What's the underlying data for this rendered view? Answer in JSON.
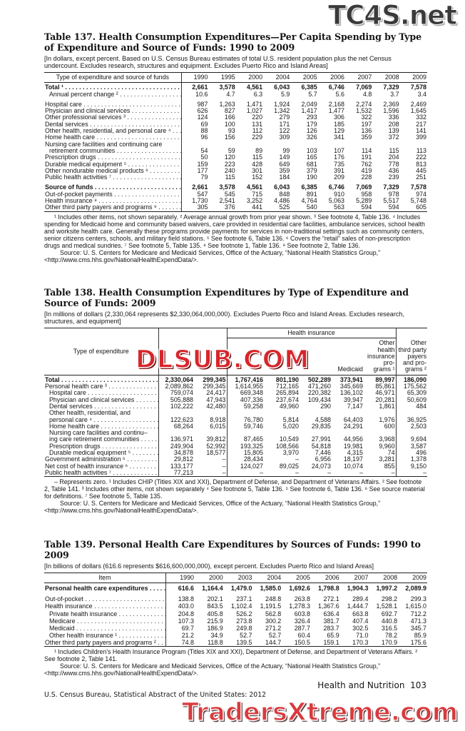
{
  "watermarks": {
    "top": "TC4S.net",
    "middle": "DLSUB.COM",
    "bottom": "TradersXtreme.com"
  },
  "t137": {
    "title": "Table 137. Health Consumption Expenditures—Per Capita Spending by Type of Expenditure and Source of Funds: 1990 to 2009",
    "subtitle": "[In dollars, except percent. Based on U.S. Census Bureau estimates of total U.S. resident population plus the net Census undercount. Excludes research, structures and equipment. Excludes Puerto Rico and Island Areas]",
    "header": {
      "label": "Type of expenditure and source of funds",
      "years": [
        "1990",
        "1995",
        "2000",
        "2004",
        "2005",
        "2006",
        "2007",
        "2008",
        "2009"
      ]
    },
    "rows": [
      {
        "label": [
          "Total ¹"
        ],
        "bold": true,
        "values": [
          "2,661",
          "3,578",
          "4,561",
          "6,043",
          "6,385",
          "6,746",
          "7,069",
          "7,329",
          "7,578"
        ]
      },
      {
        "label": [
          "Annual percent change ²"
        ],
        "indent": true,
        "values": [
          "10.6",
          "4.7",
          "6.3",
          "5.9",
          "5.7",
          "5.6",
          "4.8",
          "3.7",
          "3.4"
        ]
      },
      {
        "label": [
          "Hospital care"
        ],
        "gap": true,
        "values": [
          "987",
          "1,263",
          "1,471",
          "1,924",
          "2,049",
          "2,168",
          "2,274",
          "2,369",
          "2,469"
        ]
      },
      {
        "label": [
          "Physician and clinical services"
        ],
        "values": [
          "626",
          "827",
          "1,027",
          "1,342",
          "1,417",
          "1,477",
          "1,532",
          "1,596",
          "1,645"
        ]
      },
      {
        "label": [
          "Other professional services ³"
        ],
        "values": [
          "124",
          "166",
          "220",
          "279",
          "293",
          "306",
          "322",
          "336",
          "332"
        ]
      },
      {
        "label": [
          "Dental services"
        ],
        "values": [
          "69",
          "100",
          "131",
          "171",
          "179",
          "185",
          "197",
          "208",
          "217"
        ]
      },
      {
        "label": [
          "Other health, residential, and personal care ⁴"
        ],
        "values": [
          "88",
          "93",
          "112",
          "122",
          "126",
          "129",
          "136",
          "139",
          "141"
        ]
      },
      {
        "label": [
          "Home health care"
        ],
        "values": [
          "96",
          "156",
          "229",
          "309",
          "326",
          "341",
          "359",
          "372",
          "399"
        ]
      },
      {
        "label": [
          "Nursing care facilities and continuing care",
          "retirement communities"
        ],
        "values": [
          "54",
          "59",
          "89",
          "99",
          "103",
          "107",
          "114",
          "115",
          "113"
        ]
      },
      {
        "label": [
          "Prescription drugs"
        ],
        "values": [
          "50",
          "120",
          "115",
          "149",
          "165",
          "176",
          "191",
          "204",
          "222"
        ]
      },
      {
        "label": [
          "Durable medical equipment ⁵"
        ],
        "values": [
          "159",
          "223",
          "428",
          "649",
          "681",
          "735",
          "762",
          "778",
          "813"
        ]
      },
      {
        "label": [
          "Other nondurable medical products ⁶"
        ],
        "values": [
          "177",
          "240",
          "301",
          "359",
          "379",
          "391",
          "419",
          "436",
          "445"
        ]
      },
      {
        "label": [
          "Public health activities ⁷"
        ],
        "values": [
          "79",
          "115",
          "152",
          "184",
          "190",
          "209",
          "228",
          "239",
          "251"
        ]
      },
      {
        "label": [
          "Source of funds"
        ],
        "bold": true,
        "gap": true,
        "values": [
          "2,661",
          "3,578",
          "4,561",
          "6,043",
          "6,385",
          "6,746",
          "7,069",
          "7,329",
          "7,578"
        ]
      },
      {
        "label": [
          "Out-of-pocket payments"
        ],
        "values": [
          "547",
          "545",
          "715",
          "848",
          "891",
          "910",
          "958",
          "978",
          "974"
        ]
      },
      {
        "label": [
          "Health insurance ⁸"
        ],
        "values": [
          "1,730",
          "2,541",
          "3,252",
          "4,486",
          "4,764",
          "5,063",
          "5,289",
          "5,517",
          "5,748"
        ]
      },
      {
        "label": [
          "Other third party payers and programs ⁹"
        ],
        "values": [
          "305",
          "376",
          "441",
          "525",
          "540",
          "563",
          "594",
          "594",
          "605"
        ]
      }
    ],
    "footnotes": [
      "¹ Includes other items, not shown separately. ² Average annual growth from prior year shown. ³ See footnote 4, Table 136. ⁴ Includes spending for Medicaid home and community based waivers, care provided in residential care facilities, ambulance services, school health and worksite health care. Generally these programs provide payments for services in non-traditional settings such as community centers, senior citizens centers, schools, and military field stations. ⁵ See footnote 6, Table 136. ⁶ Covers the “retail” sales of non-prescription drugs and medical sundries. ⁷ See footnote 5, Table 135. ⁸ See footnote 1, Table 136. ⁹ See footnote 2, Table 136."
    ],
    "source": "Source: U. S. Centers for Medicare and Medicaid Services, Office of the Actuary, “National Health Statistics Group,”",
    "url": "<http://www.cms.hhs.gov/NationalHealthExpendData/>."
  },
  "t138": {
    "title": "Table 138. Health Consumption Expenditures by Type of Expenditure and Source of Funds: 2009",
    "subtitle": "[In millions of dollars (2,330,064 represents $2,330,064,000,000). Excludes Puerto Rico and Island Areas. Excludes research, structures, and equipment]",
    "header": {
      "label": "Type of expenditure",
      "group": "Health insurance",
      "medicaid": "Medicaid",
      "other_hi": [
        "Other",
        "health",
        "insurance",
        "pro-",
        "grams ¹"
      ],
      "other_tp": [
        "Other",
        "third party",
        "payers",
        "and pro-",
        "grams ²"
      ]
    },
    "rows": [
      {
        "label": [
          "Total"
        ],
        "bold": true,
        "values": [
          "2,330,064",
          "299,345",
          "1,767,416",
          "801,190",
          "502,289",
          "373,941",
          "89,997",
          "186,090"
        ]
      },
      {
        "label": [
          "Personal health care ³"
        ],
        "values": [
          "2,089,862",
          "299,345",
          "1,614,955",
          "712,165",
          "471,260",
          "345,669",
          "85,861",
          "175,562"
        ]
      },
      {
        "label": [
          "Hospital care"
        ],
        "indent": true,
        "values": [
          "759,074",
          "24,417",
          "669,348",
          "265,894",
          "220,382",
          "136,102",
          "46,971",
          "65,309"
        ]
      },
      {
        "label": [
          "Physician and clinical services"
        ],
        "indent": true,
        "values": [
          "505,888",
          "47,943",
          "407,336",
          "237,674",
          "109,434",
          "39,947",
          "20,281",
          "50,609"
        ]
      },
      {
        "label": [
          "Dental services"
        ],
        "indent": true,
        "values": [
          "102,222",
          "42,480",
          "59,258",
          "49,960",
          "290",
          "7,147",
          "1,861",
          "484"
        ]
      },
      {
        "label": [
          "Other health, residential, and",
          "personal care ⁴"
        ],
        "indent": true,
        "values": [
          "122,623",
          "8,918",
          "76,780",
          "5,814",
          "4,588",
          "64,403",
          "1,976",
          "36,925"
        ]
      },
      {
        "label": [
          "Home health care"
        ],
        "indent": true,
        "values": [
          "68,264",
          "6,015",
          "59,746",
          "5,020",
          "29,835",
          "24,291",
          "600",
          "2,503"
        ]
      },
      {
        "label": [
          "Nursing care facilities and continu–",
          "ing care retirement communities"
        ],
        "indent": true,
        "values": [
          "136,971",
          "39,812",
          "87,465",
          "10,549",
          "27,991",
          "44,956",
          "3,968",
          "9,694"
        ]
      },
      {
        "label": [
          "Prescription drugs"
        ],
        "indent": true,
        "values": [
          "249,904",
          "52,992",
          "193,325",
          "108,566",
          "54,818",
          "19,981",
          "9,960",
          "3,587"
        ]
      },
      {
        "label": [
          "Durable medical equipment ⁵"
        ],
        "indent": true,
        "values": [
          "34,878",
          "18,577",
          "15,805",
          "3,970",
          "7,446",
          "4,315",
          "74",
          "496"
        ]
      },
      {
        "label": [
          "Government administration ⁶"
        ],
        "values": [
          "29,812",
          "–",
          "28,434",
          "–",
          "6,956",
          "18,197",
          "3,281",
          "1,378"
        ]
      },
      {
        "label": [
          "Net cost of health insurance ⁶"
        ],
        "values": [
          "133,177",
          "–",
          "124,027",
          "89,025",
          "24,073",
          "10,074",
          "855",
          "9,150"
        ]
      },
      {
        "label": [
          "Public health activities ⁷"
        ],
        "values": [
          "77,213",
          "–",
          "–",
          "–",
          "–",
          "–",
          "–",
          "–"
        ]
      }
    ],
    "footnotes": [
      "– Represents zero. ¹ Includes CHIP (Titles XIX and XXI), Department of Defense, and Department of Veterans Affairs. ² See footnote 2, Table 141. ³ Includes other items, not shown separately ⁴ See footnote 5, Table 136. ⁵ See footnote 6, Table 136. ⁶ See source material for definitions. ⁷ See footnote 5, Table 135."
    ],
    "source": "Source: U. S. Centers for Medicare and Medicaid Services, Office of the Actuary, “National Health Statistics Group,”",
    "url": "<http://www.cms.hhs.gov/NationalHealthExpendData/>."
  },
  "t139": {
    "title": "Table 139. Personal Health Care Expenditures by Sources of Funds: 1990 to 2009",
    "subtitle": "[In billions of dollars (616.6 represents $616,600,000,000), except percent. Excludes Puerto Rico and Island Areas]",
    "header": {
      "label": "Item",
      "years": [
        "1990",
        "2000",
        "2003",
        "2004",
        "2005",
        "2006",
        "2007",
        "2008",
        "2009"
      ]
    },
    "rows": [
      {
        "label": [
          "Personal health care expenditures"
        ],
        "bold": true,
        "values": [
          "616.6",
          "1,164.4",
          "1,479.0",
          "1,585.0",
          "1,692.6",
          "1,798.8",
          "1,904.3",
          "1,997.2",
          "2,089.9"
        ]
      },
      {
        "label": [
          "Out-of-pocket"
        ],
        "gap": true,
        "values": [
          "138.8",
          "202.1",
          "237.1",
          "248.8",
          "263.8",
          "272.1",
          "289.4",
          "298.2",
          "299.3"
        ]
      },
      {
        "label": [
          "Health insurance"
        ],
        "values": [
          "403.0",
          "843.5",
          "1,102.4",
          "1,191.5",
          "1,278.3",
          "1,367.6",
          "1,444.7",
          "1,528.1",
          "1,615.0"
        ]
      },
      {
        "label": [
          "Private health insurance"
        ],
        "indent": true,
        "values": [
          "204.8",
          "405.8",
          "526.2",
          "562.8",
          "603.8",
          "636.4",
          "663.8",
          "692.7",
          "712.2"
        ]
      },
      {
        "label": [
          "Medicare"
        ],
        "indent": true,
        "values": [
          "107.3",
          "215.9",
          "273.8",
          "300.2",
          "326.4",
          "381.7",
          "407.4",
          "440.8",
          "471.3"
        ]
      },
      {
        "label": [
          "Medicaid"
        ],
        "indent": true,
        "values": [
          "69.7",
          "186.9",
          "249.8",
          "271.2",
          "287.7",
          "283.7",
          "302.5",
          "316.5",
          "345.7"
        ]
      },
      {
        "label": [
          "Other health insurance ¹"
        ],
        "indent": true,
        "values": [
          "21.2",
          "34.9",
          "52.7",
          "52.7",
          "60.4",
          "65.9",
          "71.0",
          "78.2",
          "85.9"
        ]
      },
      {
        "label": [
          "Other third party payers and programs ²"
        ],
        "values": [
          "74.8",
          "118.8",
          "139.5",
          "144.7",
          "150.5",
          "159.1",
          "170.3",
          "170.9",
          "175.6"
        ]
      }
    ],
    "footnotes": [
      "¹ Includes Children's Health Insurance Program (Titles XIX and XXI), Department of Defense, and Department of Veterans Affairs. ² See footnote 2, Table 141."
    ],
    "source": "Source: U. S. Centers for Medicare and Medicaid Services, Office of the Actuary, “National Health Statistics Group,”",
    "url": "<http://www.cms.hhs.gov/NationalHealthExpendData/>."
  },
  "footer": {
    "section": "Health and Nutrition",
    "page": "103",
    "publication": "U.S. Census Bureau, Statistical Abstract of the United States: 2012"
  }
}
